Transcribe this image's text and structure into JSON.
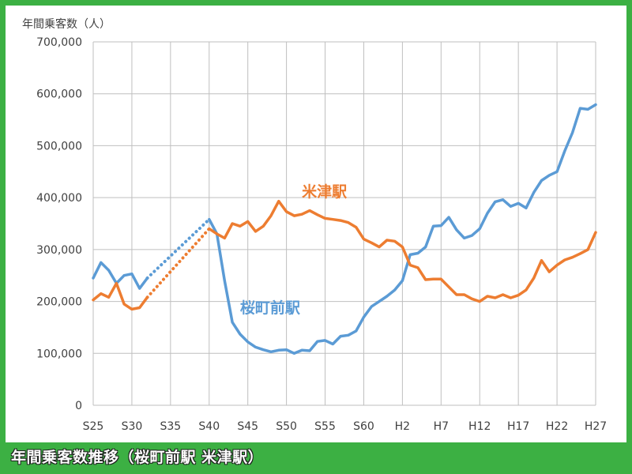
{
  "caption": "年間乗客数推移（桜町前駅 米津駅）",
  "chart_data": {
    "type": "line",
    "ylabel": "年間乗客数（人）",
    "ylim": [
      0,
      700000
    ],
    "y_ticks": [
      0,
      100000,
      200000,
      300000,
      400000,
      500000,
      600000,
      700000
    ],
    "y_tick_labels": [
      "0",
      "100,000",
      "200,000",
      "300,000",
      "400,000",
      "500,000",
      "600,000",
      "700,000"
    ],
    "x_tick_labels": [
      "S25",
      "S30",
      "S35",
      "S40",
      "S45",
      "S50",
      "S55",
      "S60",
      "H2",
      "H7",
      "H12",
      "H17",
      "H22",
      "H27"
    ],
    "x_tick_years": [
      1950,
      1955,
      1960,
      1965,
      1970,
      1975,
      1980,
      1985,
      1990,
      1995,
      2000,
      2005,
      2010,
      2015
    ],
    "xlim": [
      1950,
      2015
    ],
    "grid": true,
    "series": [
      {
        "name": "桜町前駅",
        "color": "#5b9bd5",
        "label_at": [
          1969,
          178000
        ],
        "segments": [
          {
            "style": "solid",
            "x": [
              1950,
              1951,
              1952,
              1953,
              1954,
              1955,
              1956,
              1957
            ],
            "y": [
              245000,
              275000,
              260000,
              235000,
              250000,
              253000,
              225000,
              245000
            ]
          },
          {
            "style": "dotted",
            "x": [
              1957,
              1965
            ],
            "y": [
              245000,
              358000
            ]
          },
          {
            "style": "solid",
            "x": [
              1965,
              1966,
              1967,
              1968,
              1969,
              1970,
              1971,
              1972,
              1973,
              1974,
              1975,
              1976,
              1977,
              1978,
              1979,
              1980,
              1981,
              1982,
              1983,
              1984,
              1985,
              1986,
              1987,
              1988,
              1989,
              1990,
              1991,
              1992,
              1993,
              1994,
              1995,
              1996,
              1997,
              1998,
              1999,
              2000,
              2001,
              2002,
              2003,
              2004,
              2005,
              2006,
              2007,
              2008,
              2009,
              2010,
              2011,
              2012,
              2013,
              2014,
              2015
            ],
            "y": [
              358000,
              330000,
              240000,
              160000,
              137000,
              122000,
              112000,
              107000,
              103000,
              106000,
              107000,
              100000,
              106000,
              105000,
              123000,
              125000,
              118000,
              133000,
              135000,
              143000,
              170000,
              190000,
              200000,
              210000,
              222000,
              240000,
              290000,
              293000,
              305000,
              345000,
              346000,
              362000,
              338000,
              322000,
              327000,
              340000,
              370000,
              392000,
              396000,
              383000,
              389000,
              380000,
              410000,
              433000,
              443000,
              450000,
              490000,
              525000,
              572000,
              570000,
              579000
            ]
          }
        ]
      },
      {
        "name": "米津駅",
        "color": "#ed7d31",
        "label_at": [
          1977,
          402000
        ],
        "segments": [
          {
            "style": "solid",
            "x": [
              1950,
              1951,
              1952,
              1953,
              1954,
              1955,
              1956,
              1957
            ],
            "y": [
              203000,
              215000,
              208000,
              235000,
              195000,
              185000,
              188000,
              208000
            ]
          },
          {
            "style": "dotted",
            "x": [
              1957,
              1965
            ],
            "y": [
              208000,
              340000
            ]
          },
          {
            "style": "solid",
            "x": [
              1965,
              1966,
              1967,
              1968,
              1969,
              1970,
              1971,
              1972,
              1973,
              1974,
              1975,
              1976,
              1977,
              1978,
              1979,
              1980,
              1981,
              1982,
              1983,
              1984,
              1985,
              1986,
              1987,
              1988,
              1989,
              1990,
              1991,
              1992,
              1993,
              1994,
              1995,
              1996,
              1997,
              1998,
              1999,
              2000,
              2001,
              2002,
              2003,
              2004,
              2005,
              2006,
              2007,
              2008,
              2009,
              2010,
              2011,
              2012,
              2013,
              2014,
              2015
            ],
            "y": [
              340000,
              330000,
              322000,
              350000,
              345000,
              354000,
              335000,
              345000,
              365000,
              393000,
              373000,
              365000,
              368000,
              375000,
              367000,
              360000,
              358000,
              356000,
              352000,
              343000,
              320000,
              313000,
              305000,
              318000,
              316000,
              305000,
              270000,
              265000,
              242000,
              243000,
              243000,
              228000,
              213000,
              213000,
              205000,
              200000,
              210000,
              207000,
              213000,
              207000,
              212000,
              222000,
              245000,
              279000,
              257000,
              270000,
              280000,
              285000,
              292000,
              300000,
              333000
            ]
          }
        ]
      }
    ]
  }
}
